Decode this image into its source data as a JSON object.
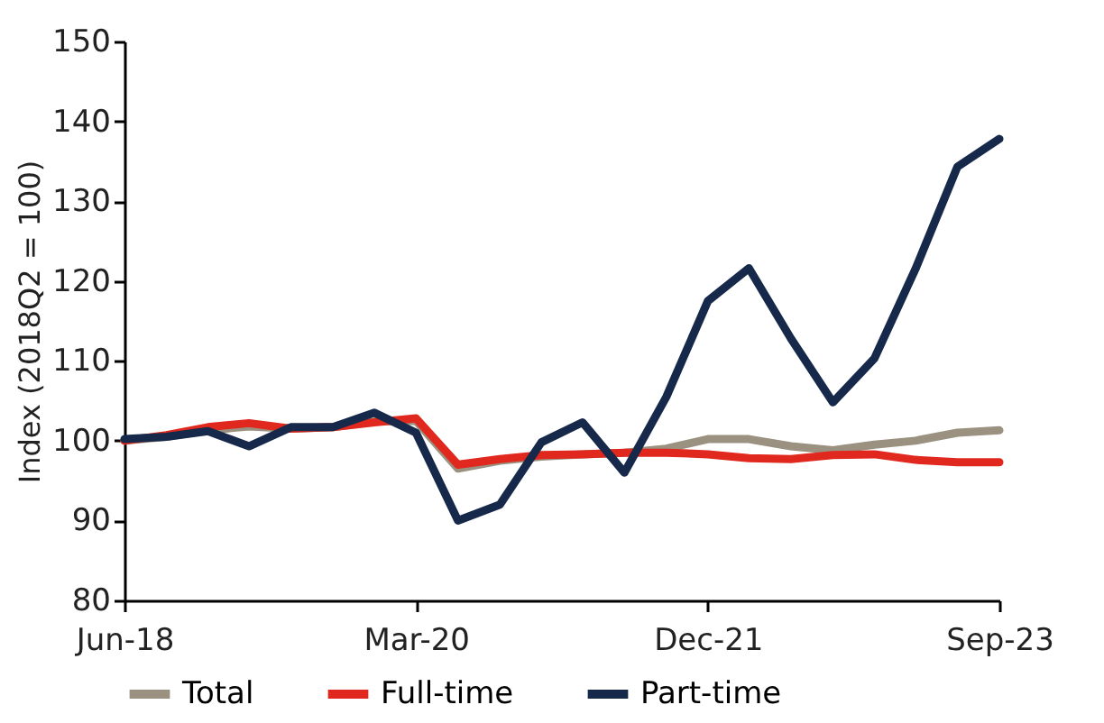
{
  "chart_data": {
    "type": "line",
    "ylabel": "Index (2018Q2 = 100)",
    "x": [
      "2018-06",
      "2018-09",
      "2018-12",
      "2019-03",
      "2019-06",
      "2019-09",
      "2019-12",
      "2020-03",
      "2020-06",
      "2020-09",
      "2020-12",
      "2021-03",
      "2021-06",
      "2021-09",
      "2021-12",
      "2022-03",
      "2022-06",
      "2022-09",
      "2022-12",
      "2023-03",
      "2023-06",
      "2023-09"
    ],
    "series": [
      {
        "name": "Total",
        "color": "#9a9180",
        "values": [
          100,
          100.5,
          101.3,
          101.8,
          101.5,
          101.7,
          102.4,
          102.5,
          96.5,
          97.5,
          98,
          98.3,
          98.5,
          99,
          100.2,
          100.2,
          99.3,
          98.8,
          99.5,
          100,
          101,
          101.3
        ]
      },
      {
        "name": "Full-time",
        "color": "#e0281e",
        "values": [
          100,
          100.7,
          101.7,
          102.2,
          101.5,
          101.7,
          102.3,
          102.8,
          97,
          97.7,
          98.2,
          98.3,
          98.5,
          98.5,
          98.3,
          97.8,
          97.7,
          98.2,
          98.3,
          97.6,
          97.3,
          97.3
        ]
      },
      {
        "name": "Part-time",
        "color": "#16294a",
        "values": [
          100.2,
          100.5,
          101.2,
          99.3,
          101.7,
          101.7,
          103.5,
          101,
          90,
          92,
          99.8,
          102.3,
          96,
          105.5,
          117.5,
          121.6,
          112.8,
          104.8,
          110.3,
          121.5,
          134.3,
          137.8
        ]
      }
    ],
    "xlim": [
      "2018-06",
      "2023-09"
    ],
    "xticks": [
      {
        "value": "2018-06",
        "label": "Jun-18"
      },
      {
        "value": "2020-03",
        "label": "Mar-20"
      },
      {
        "value": "2021-12",
        "label": "Dec-21"
      },
      {
        "value": "2023-09",
        "label": "Sep-23"
      }
    ],
    "ylim": [
      80,
      150
    ],
    "yticks": [
      80,
      90,
      100,
      110,
      120,
      130,
      140,
      150
    ],
    "grid": false,
    "legend": "bottom",
    "marker": "none",
    "line_style": "solid"
  }
}
